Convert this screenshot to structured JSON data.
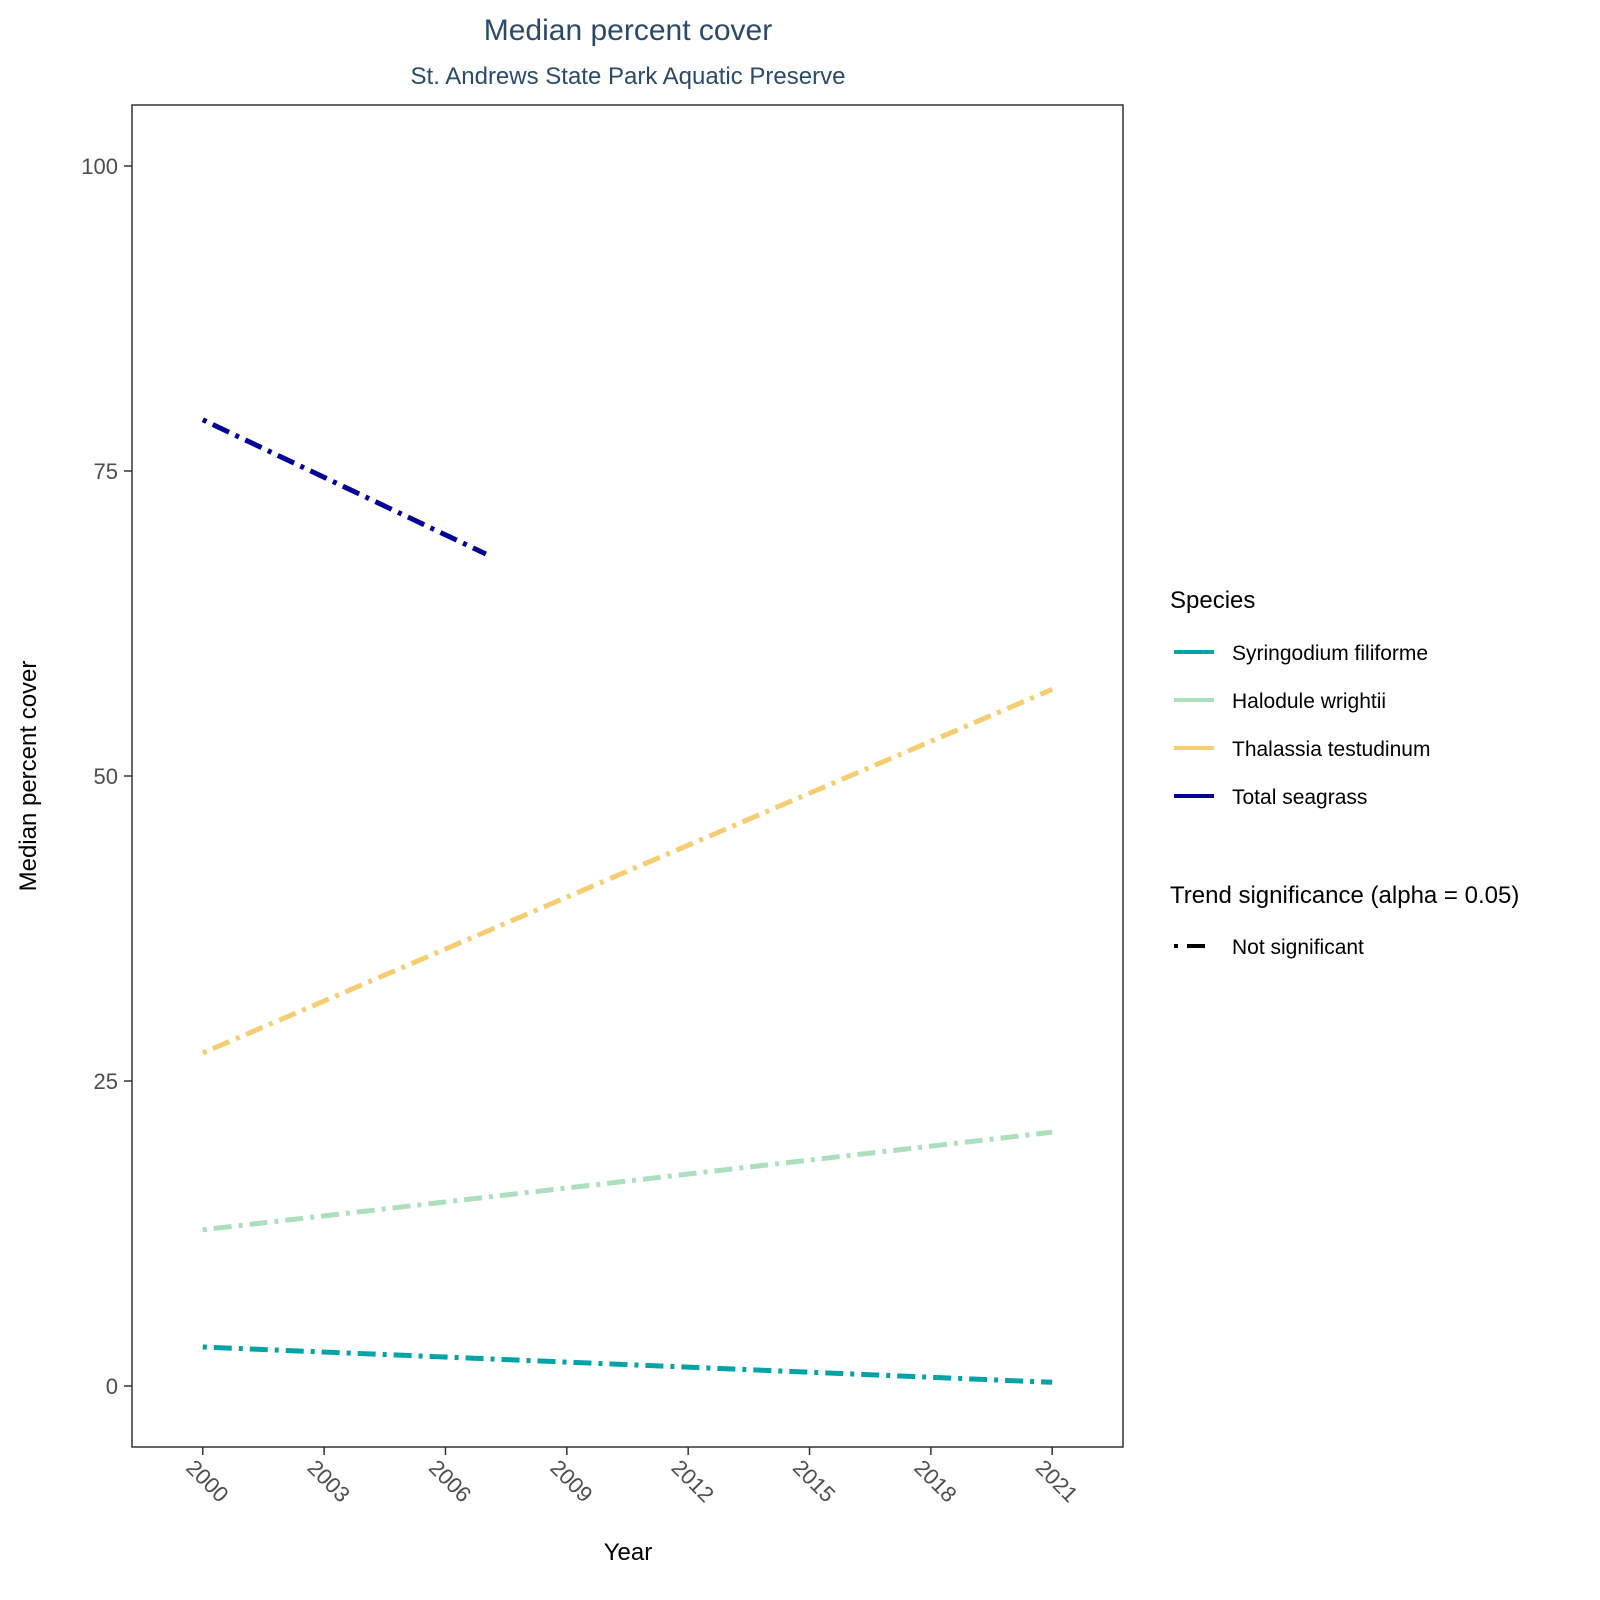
{
  "chart_data": {
    "type": "line",
    "title": "Median percent cover",
    "subtitle": "St. Andrews State Park Aquatic Preserve",
    "xlabel": "Year",
    "ylabel": "Median percent cover",
    "xlim": [
      1998.25,
      2022.75
    ],
    "ylim": [
      -5,
      105
    ],
    "x_ticks": [
      2000,
      2003,
      2006,
      2009,
      2012,
      2015,
      2018,
      2021
    ],
    "y_ticks": [
      0,
      25,
      50,
      75,
      100
    ],
    "grid": false,
    "series": [
      {
        "name": "Syringodium filiforme",
        "color": "#00a3a6",
        "x": [
          2000,
          2021
        ],
        "y": [
          3.2,
          0.3
        ]
      },
      {
        "name": "Halodule wrightii",
        "color": "#abdfbd",
        "x": [
          2000,
          2021
        ],
        "y": [
          12.8,
          20.8
        ]
      },
      {
        "name": "Thalassia testudinum",
        "color": "#f6cd70",
        "x": [
          2000,
          2021
        ],
        "y": [
          27.3,
          57.1
        ]
      },
      {
        "name": "Total seagrass",
        "color": "#000099",
        "x": [
          2000,
          2007
        ],
        "y": [
          79.2,
          68.2
        ]
      }
    ],
    "legend": {
      "placement": "right",
      "species_title": "Species",
      "significance_title": "Trend significance (alpha = 0.05)",
      "significance_items": [
        {
          "label": "Not significant",
          "linetype": "dotdash"
        }
      ]
    }
  }
}
